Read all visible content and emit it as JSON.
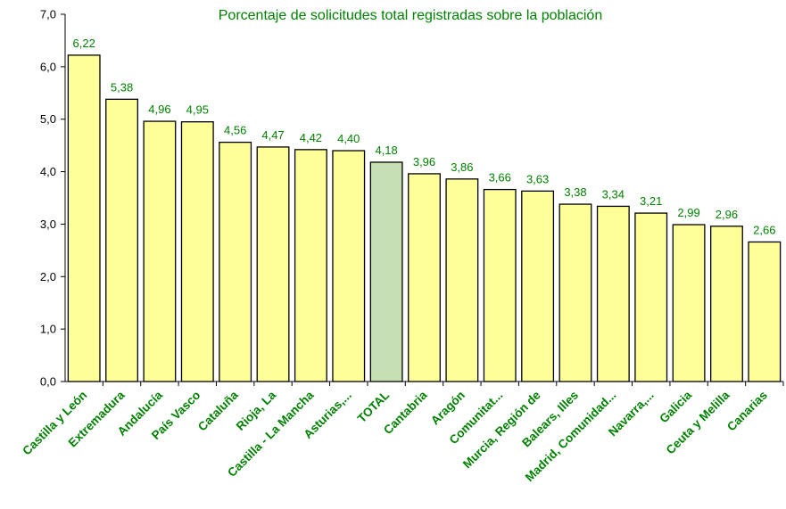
{
  "chart_data": {
    "type": "bar",
    "title": "Porcentaje de solicitudes total registradas sobre la población",
    "xlabel": "",
    "ylabel": "",
    "ylim": [
      0,
      7
    ],
    "yticks": [
      "0,0",
      "1,0",
      "2,0",
      "3,0",
      "4,0",
      "5,0",
      "6,0",
      "7,0"
    ],
    "categories": [
      "Castilla y León",
      "Extremadura",
      "Andalucía",
      "País Vasco",
      "Cataluña",
      "Rioja, La",
      "Castilla - La Mancha",
      "Asturias,...",
      "TOTAL",
      "Cantabria",
      "Aragón",
      "Comunitat...",
      "Murcia, Región de",
      "Balears, Illes",
      "Madrid, Comunidad...",
      "Navarra,...",
      "Galicia",
      "Ceuta y Melilla",
      "Canarias"
    ],
    "values": [
      6.22,
      5.38,
      4.96,
      4.95,
      4.56,
      4.47,
      4.42,
      4.4,
      4.18,
      3.96,
      3.86,
      3.66,
      3.63,
      3.38,
      3.34,
      3.21,
      2.99,
      2.96,
      2.66
    ],
    "value_labels": [
      "6,22",
      "5,38",
      "4,96",
      "4,95",
      "4,56",
      "4,47",
      "4,42",
      "4,40",
      "4,18",
      "3,96",
      "3,86",
      "3,66",
      "3,63",
      "3,38",
      "3,34",
      "3,21",
      "2,99",
      "2,96",
      "2,66"
    ],
    "highlight_category": "TOTAL",
    "grid": false,
    "legend": "none"
  },
  "colors": {
    "bar_fill": "#FFFF99",
    "highlight_fill": "#C6E0B4",
    "bar_stroke": "#000000",
    "text_green": "#008000",
    "axis": "#000000"
  }
}
